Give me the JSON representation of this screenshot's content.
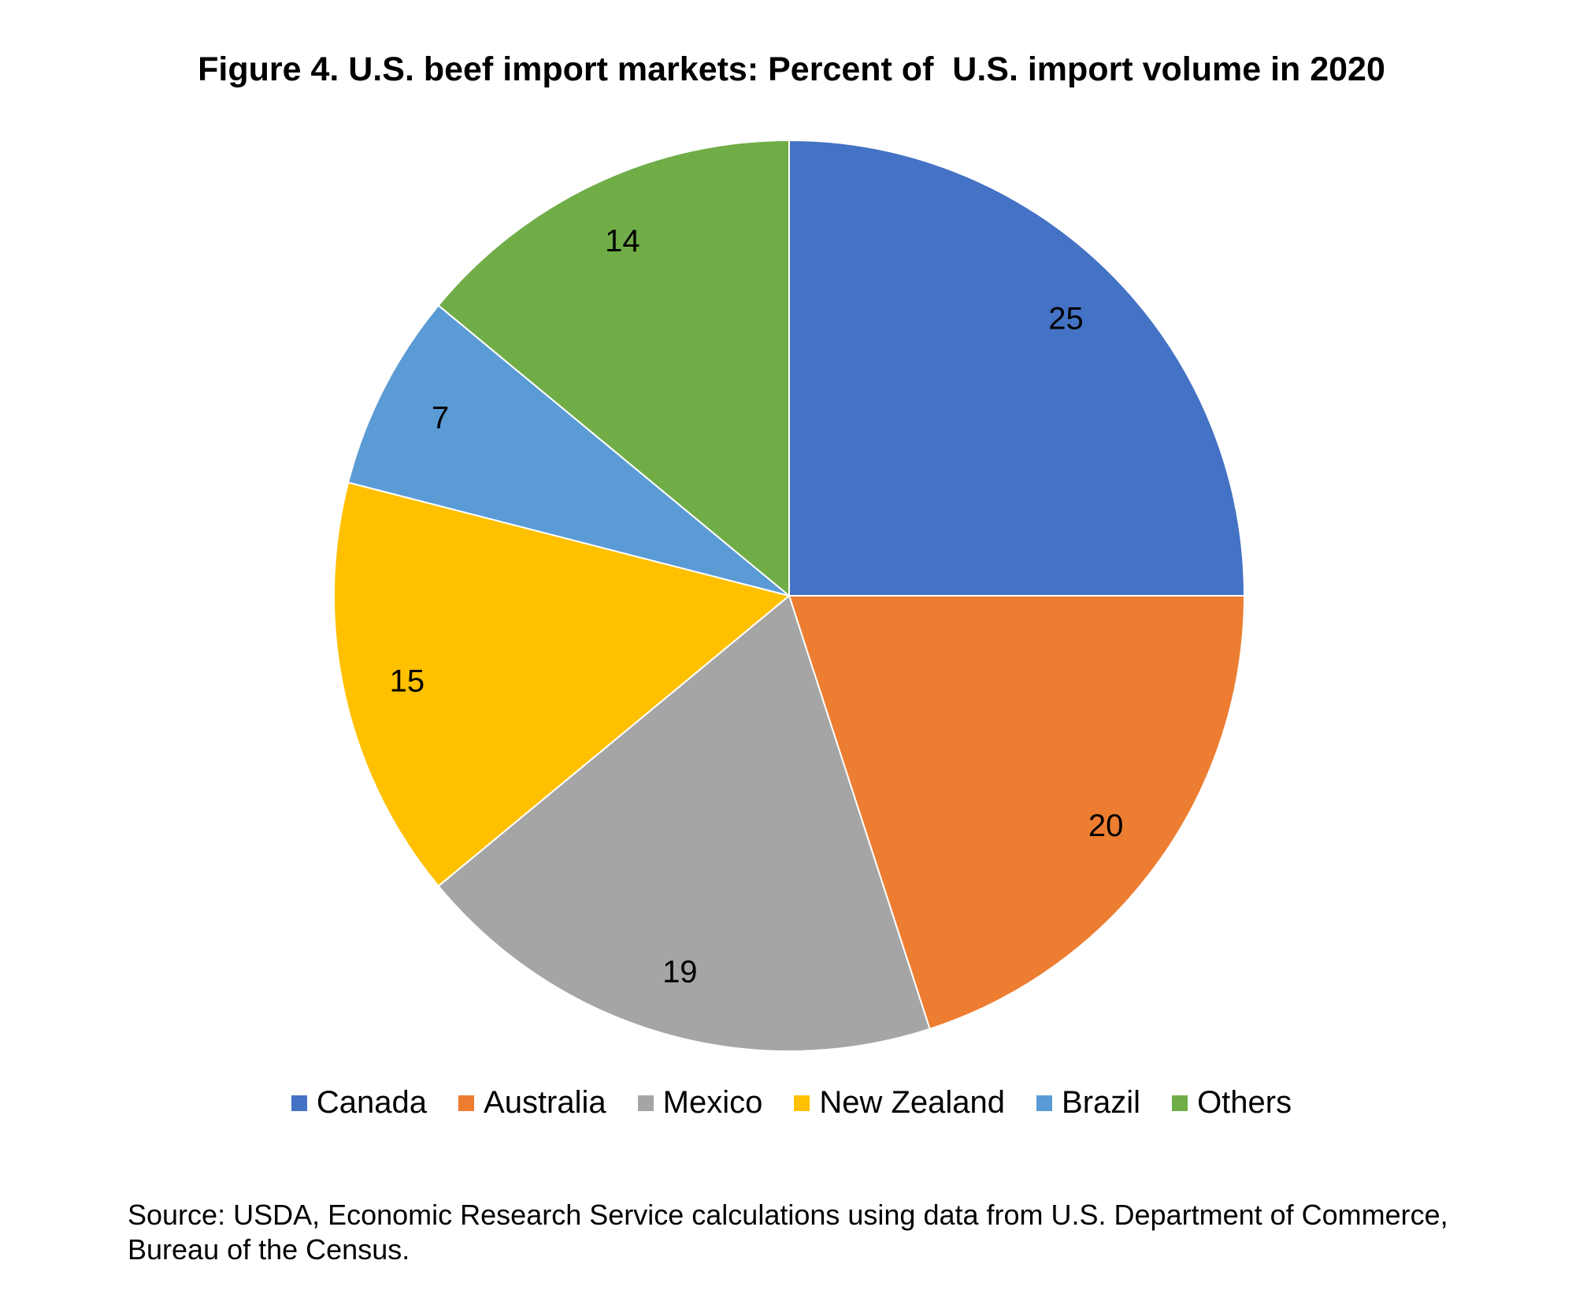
{
  "chart_data": {
    "type": "pie",
    "title": "Figure 4. U.S. beef import markets: Percent of  U.S. import volume in 2020",
    "categories": [
      "Canada",
      "Australia",
      "Mexico",
      "New Zealand",
      "Brazil",
      "Others"
    ],
    "values": [
      25,
      20,
      19,
      15,
      7,
      14
    ],
    "colors": [
      "#4472C4",
      "#ED7D31",
      "#A5A5A5",
      "#FFC000",
      "#5B9BD5",
      "#70AD47"
    ],
    "data_labels": [
      "25",
      "20",
      "19",
      "15",
      "7",
      "14"
    ],
    "legend_position": "bottom",
    "start_angle": "top, clockwise"
  },
  "source_note": "Source: USDA, Economic Research Service calculations using data from U.S. Department of Commerce, Bureau of the Census."
}
